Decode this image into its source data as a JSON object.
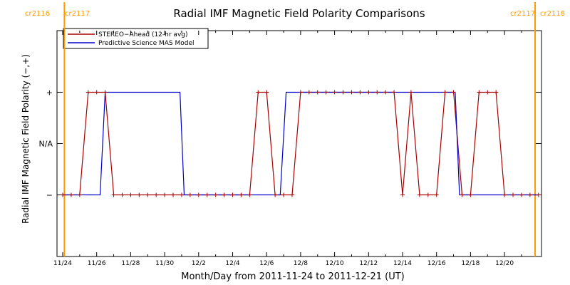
{
  "chart_data": {
    "type": "line",
    "title": "Radial IMF Magnetic Field Polarity Comparisons",
    "xlabel": "Month/Day from 2011-11-24 to 2011-12-21 (UT)",
    "ylabel": "Radial IMF Magnetic Field Polarity (−,+)",
    "xlim_days": [
      0,
      28.1
    ],
    "x_ticks": [
      {
        "day": 0,
        "label": "11/24"
      },
      {
        "day": 2,
        "label": "11/26"
      },
      {
        "day": 4,
        "label": "11/28"
      },
      {
        "day": 6,
        "label": "11/30"
      },
      {
        "day": 8,
        "label": "12/2"
      },
      {
        "day": 10,
        "label": "12/4"
      },
      {
        "day": 12,
        "label": "12/6"
      },
      {
        "day": 14,
        "label": "12/8"
      },
      {
        "day": 16,
        "label": "12/10"
      },
      {
        "day": 18,
        "label": "12/12"
      },
      {
        "day": 20,
        "label": "12/14"
      },
      {
        "day": 22,
        "label": "12/16"
      },
      {
        "day": 24,
        "label": "12/18"
      },
      {
        "day": 26,
        "label": "12/20"
      }
    ],
    "y_ticks": [
      {
        "value": 1,
        "label": "+"
      },
      {
        "value": 0,
        "label": "N/A"
      },
      {
        "value": -1,
        "label": "−"
      }
    ],
    "ylim": [
      -2.2,
      2.2
    ],
    "rotation_markers": [
      {
        "day": 0.1,
        "left_label": "cr2116",
        "right_label": "cr2117"
      },
      {
        "day": 27.8,
        "left_label": "cr2117",
        "right_label": "cr2118"
      }
    ],
    "marker_color": "#ff9900",
    "legend": {
      "position": "top-left"
    },
    "series": [
      {
        "name": "STEREO−Ahead (12-hr avg)",
        "color": "#aa0000",
        "marker": "plus",
        "x": [
          0,
          0.5,
          1,
          1.5,
          2,
          2.5,
          3,
          3.5,
          4,
          4.5,
          5,
          5.5,
          6,
          6.5,
          7,
          7.5,
          8,
          8.5,
          9,
          9.5,
          10,
          10.5,
          11,
          11.5,
          12,
          12.5,
          13,
          13.5,
          14,
          14.5,
          15,
          15.5,
          16,
          16.5,
          17,
          17.5,
          18,
          18.5,
          19,
          19.5,
          20,
          20.5,
          21,
          21.5,
          22,
          22.5,
          23,
          23.5,
          24,
          24.5,
          25,
          25.5,
          26,
          26.5,
          27,
          27.5,
          28
        ],
        "values": [
          -1,
          -1,
          -1,
          1,
          1,
          1,
          -1,
          -1,
          -1,
          -1,
          -1,
          -1,
          -1,
          -1,
          -1,
          -1,
          -1,
          -1,
          -1,
          -1,
          -1,
          -1,
          -1,
          1,
          1,
          -1,
          -1,
          -1,
          1,
          1,
          1,
          1,
          1,
          1,
          1,
          1,
          1,
          1,
          1,
          1,
          -1,
          1,
          -1,
          -1,
          -1,
          1,
          1,
          -1,
          -1,
          1,
          1,
          1,
          -1,
          -1,
          -1,
          -1,
          -1
        ]
      },
      {
        "name": "Predictive Science MAS Model",
        "color": "#0000cc",
        "marker": "none",
        "x": [
          0,
          2.2,
          2.5,
          6.9,
          7.15,
          12.8,
          13.15,
          23.1,
          23.35,
          28.0
        ],
        "values": [
          -1,
          -1,
          1,
          1,
          -1,
          -1,
          1,
          1,
          -1,
          -1
        ]
      }
    ]
  }
}
